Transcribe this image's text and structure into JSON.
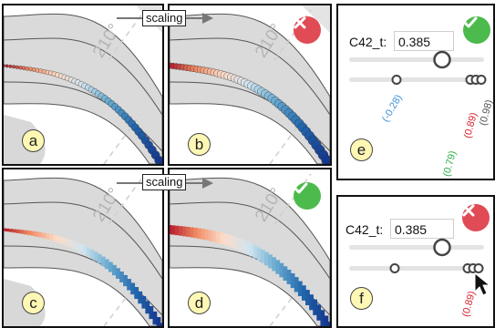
{
  "arrows": {
    "top_label": "scaling",
    "bottom_label": "scaling"
  },
  "angles": {
    "a": "210°",
    "b": "210°",
    "c": "210°",
    "d": "210°"
  },
  "panels": {
    "a": {
      "letter": "a"
    },
    "b": {
      "letter": "b",
      "status": "error"
    },
    "c": {
      "letter": "c"
    },
    "d": {
      "letter": "d",
      "status": "ok"
    },
    "e": {
      "letter": "e",
      "status": "ok",
      "field_label": "C42_t:",
      "field_value": "0.385",
      "slider_fraction": 0.62,
      "value_labels": [
        "(-0.28)",
        "(0.79)",
        "(0.89)",
        "(0.98)"
      ]
    },
    "f": {
      "letter": "f",
      "status": "error",
      "field_label": "C42_t:",
      "field_value": "0.385",
      "slider_fraction": 0.62,
      "value_labels": [
        "(0.89)"
      ]
    }
  },
  "colors": {
    "error": "#e04b55",
    "ok": "#4cba4c",
    "badge": "#fff8b5",
    "band": "#d6d6d6",
    "label_blue": "#3b8fd9",
    "label_green": "#2fae46",
    "label_red": "#d9242f",
    "label_gray": "#555555"
  }
}
